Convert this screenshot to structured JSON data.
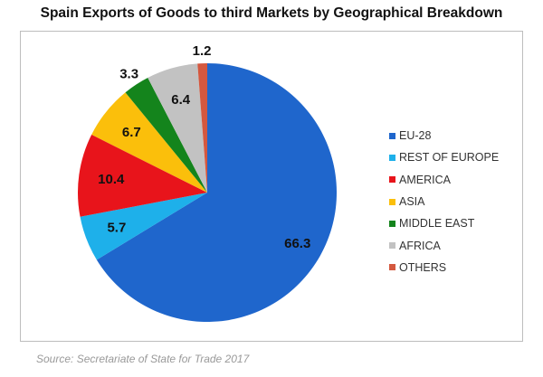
{
  "chart_data": {
    "type": "pie",
    "title": "Spain Exports of Goods to third Markets by Geographical Breakdown",
    "categories": [
      "EU-28",
      "REST OF EUROPE",
      "AMERICA",
      "ASIA",
      "MIDDLE EAST",
      "AFRICA",
      "OTHERS"
    ],
    "values": [
      66.3,
      5.7,
      10.4,
      6.7,
      3.3,
      6.4,
      1.2
    ],
    "colors": [
      "#1f66cc",
      "#1eb0ea",
      "#e8141b",
      "#fbbf0b",
      "#14841c",
      "#c2c2c2",
      "#d4583f"
    ],
    "legend_position": "right",
    "start": "top, clockwise"
  },
  "source": "Source: Secretariate of State for Trade 2017"
}
